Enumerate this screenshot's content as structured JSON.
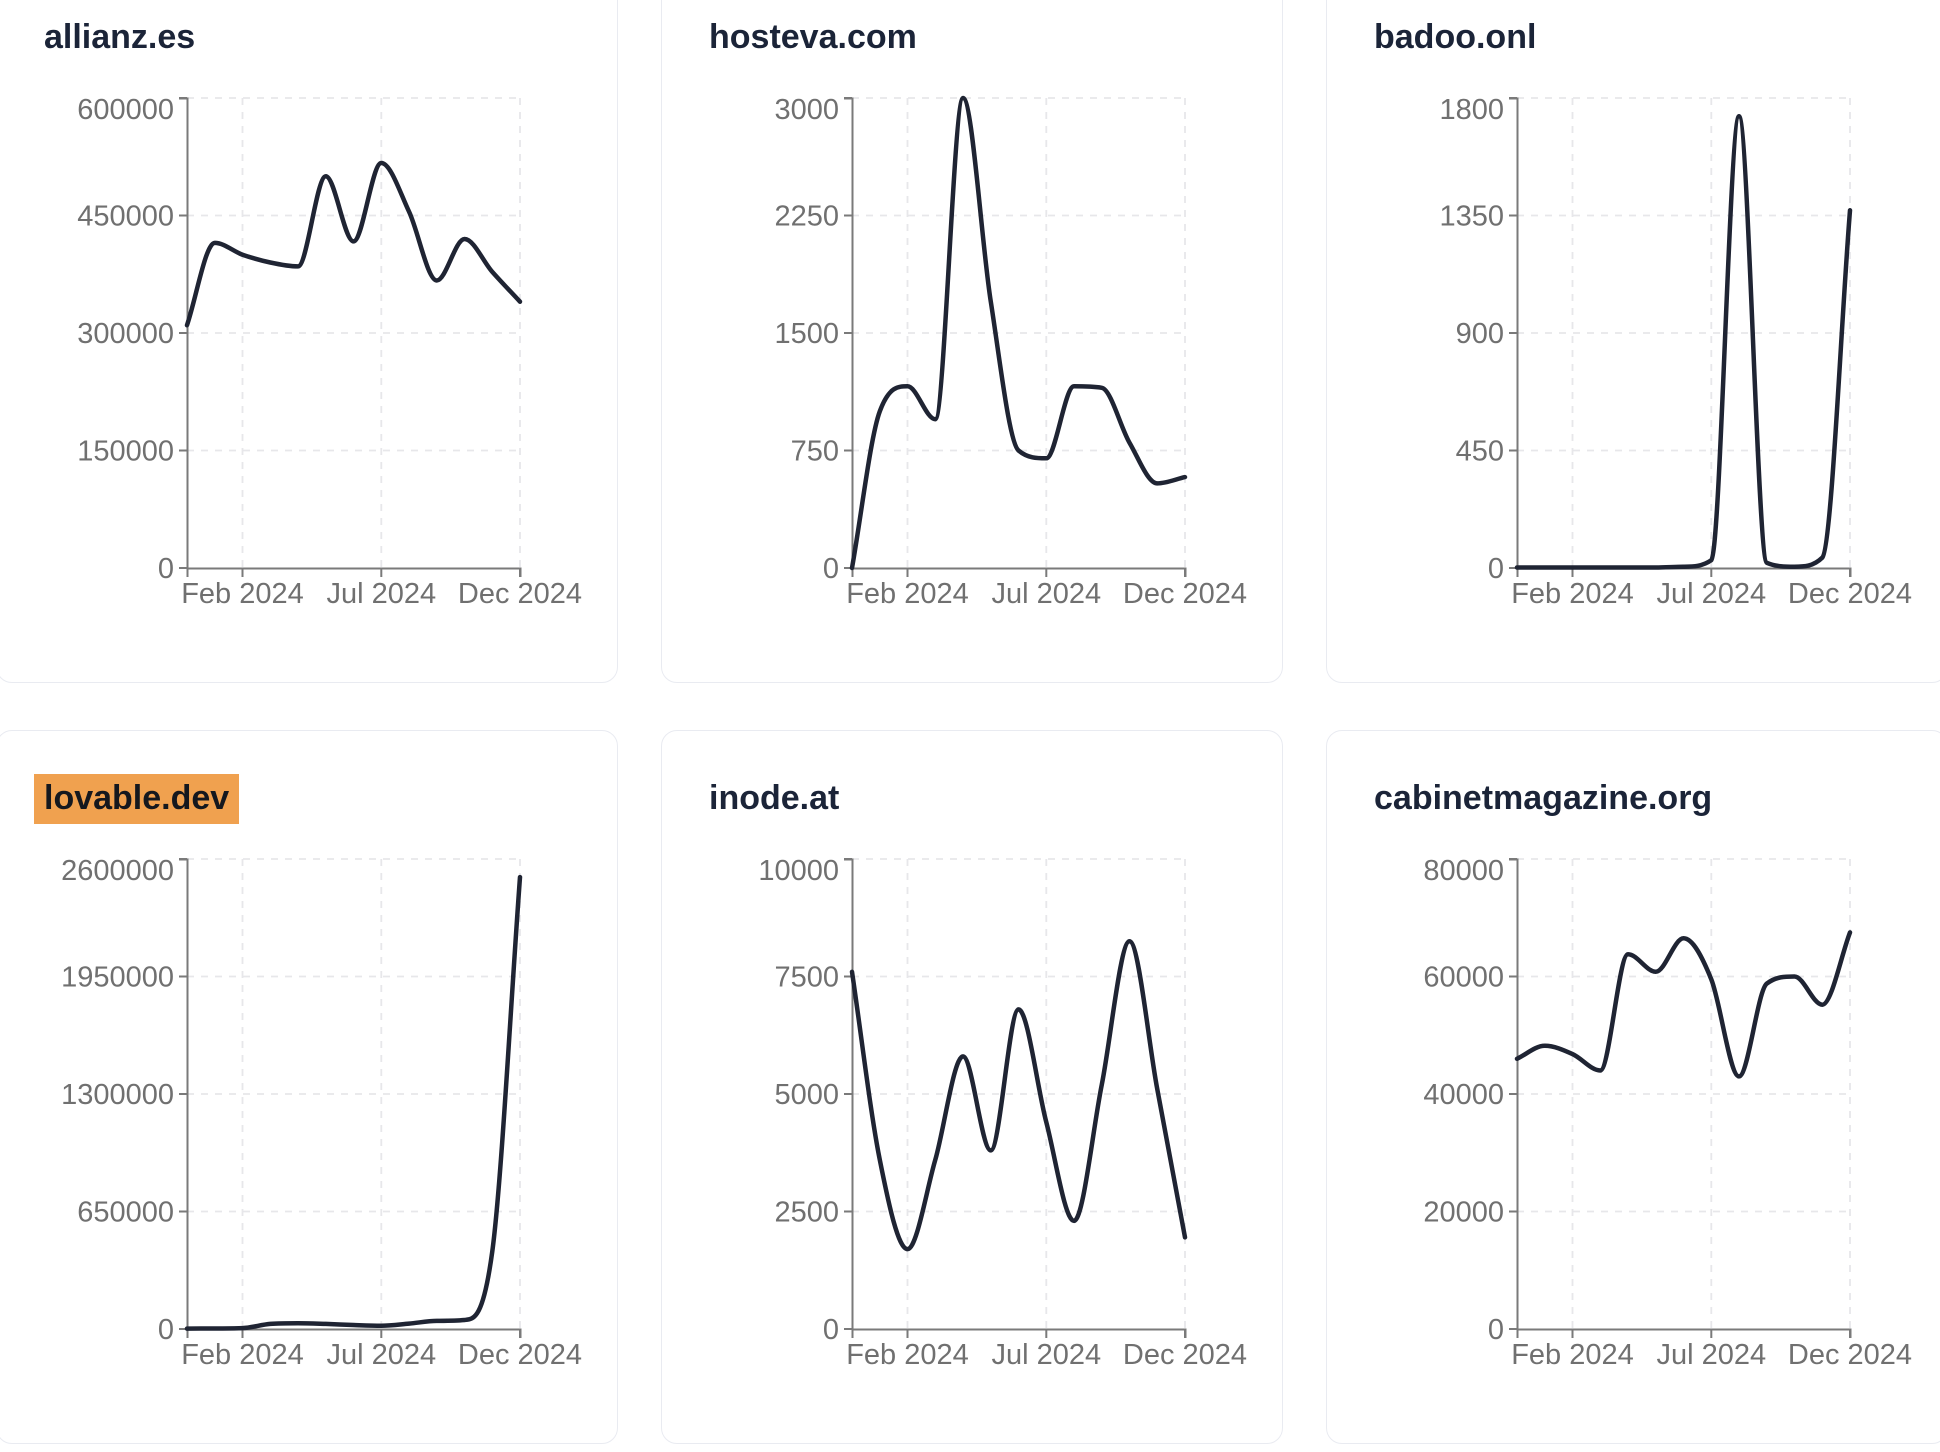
{
  "page": {
    "background": "#ffffff",
    "layout_note": "grid of 6 domain traffic chart cards, 3 columns x 2 rows"
  },
  "style": {
    "line_color": "#1f2433",
    "title_color": "#1b2438",
    "tick_text_color": "#707070",
    "axis_color": "#7a7a7a",
    "grid_color": "#e7e7ea",
    "card_border": "#e9ebf1",
    "card_bg": "#ffffff",
    "highlight_bg": "#f0a14f",
    "highlight_text": "#15181e"
  },
  "chart_data": [
    {
      "type": "line",
      "title": "allianz.es",
      "highlighted": false,
      "x": [
        "Dec 2023",
        "Jan 2024",
        "Feb 2024",
        "Mar 2024",
        "Apr 2024",
        "May 2024",
        "Jun 2024",
        "Jul 2024",
        "Aug 2024",
        "Sep 2024",
        "Oct 2024",
        "Nov 2024",
        "Dec 2024"
      ],
      "values": [
        310000,
        415000,
        400000,
        390000,
        385000,
        500000,
        417000,
        517000,
        455000,
        367000,
        420000,
        378000,
        340000
      ],
      "ylim": [
        0,
        600000
      ],
      "y_ticks": [
        0,
        150000,
        300000,
        450000,
        600000
      ],
      "x_ticks": [
        {
          "index": 2,
          "label": "Feb 2024"
        },
        {
          "index": 7,
          "label": "Jul 2024"
        },
        {
          "index": 12,
          "label": "Dec 2024"
        }
      ],
      "grid": "dashed",
      "legend": "none"
    },
    {
      "type": "line",
      "title": "hosteva.com",
      "highlighted": false,
      "x": [
        "Dec 2023",
        "Jan 2024",
        "Feb 2024",
        "Mar 2024",
        "Apr 2024",
        "May 2024",
        "Jun 2024",
        "Jul 2024",
        "Aug 2024",
        "Sep 2024",
        "Oct 2024",
        "Nov 2024",
        "Dec 2024"
      ],
      "values": [
        0,
        1000,
        1160,
        950,
        3000,
        1700,
        750,
        700,
        1160,
        1150,
        800,
        540,
        580
      ],
      "ylim": [
        0,
        3000
      ],
      "y_ticks": [
        0,
        750,
        1500,
        2250,
        3000
      ],
      "x_ticks": [
        {
          "index": 2,
          "label": "Feb 2024"
        },
        {
          "index": 7,
          "label": "Jul 2024"
        },
        {
          "index": 12,
          "label": "Dec 2024"
        }
      ],
      "grid": "dashed",
      "legend": "none"
    },
    {
      "type": "line",
      "title": "badoo.onl",
      "highlighted": false,
      "x": [
        "Dec 2023",
        "Jan 2024",
        "Feb 2024",
        "Mar 2024",
        "Apr 2024",
        "May 2024",
        "Jun 2024",
        "Jul 2024",
        "Aug 2024",
        "Sep 2024",
        "Oct 2024",
        "Nov 2024",
        "Dec 2024"
      ],
      "values": [
        2,
        2,
        2,
        2,
        2,
        2,
        5,
        30,
        1730,
        20,
        5,
        40,
        1370
      ],
      "ylim": [
        0,
        1800
      ],
      "y_ticks": [
        0,
        450,
        900,
        1350,
        1800
      ],
      "x_ticks": [
        {
          "index": 2,
          "label": "Feb 2024"
        },
        {
          "index": 7,
          "label": "Jul 2024"
        },
        {
          "index": 12,
          "label": "Dec 2024"
        }
      ],
      "grid": "dashed",
      "legend": "none"
    },
    {
      "type": "line",
      "title": "lovable.dev",
      "highlighted": true,
      "x": [
        "Dec 2023",
        "Jan 2024",
        "Feb 2024",
        "Mar 2024",
        "Apr 2024",
        "May 2024",
        "Jun 2024",
        "Jul 2024",
        "Aug 2024",
        "Sep 2024",
        "Oct 2024",
        "Nov 2024",
        "Dec 2024"
      ],
      "values": [
        2000,
        3000,
        5000,
        28000,
        32000,
        28000,
        22000,
        18000,
        30000,
        45000,
        50000,
        430000,
        2500000
      ],
      "ylim": [
        0,
        2600000
      ],
      "y_ticks": [
        0,
        650000,
        1300000,
        1950000,
        2600000
      ],
      "x_ticks": [
        {
          "index": 2,
          "label": "Feb 2024"
        },
        {
          "index": 7,
          "label": "Jul 2024"
        },
        {
          "index": 12,
          "label": "Dec 2024"
        }
      ],
      "grid": "dashed",
      "legend": "none"
    },
    {
      "type": "line",
      "title": "inode.at",
      "highlighted": false,
      "x": [
        "Dec 2023",
        "Jan 2024",
        "Feb 2024",
        "Mar 2024",
        "Apr 2024",
        "May 2024",
        "Jun 2024",
        "Jul 2024",
        "Aug 2024",
        "Sep 2024",
        "Oct 2024",
        "Nov 2024",
        "Dec 2024"
      ],
      "values": [
        7600,
        3600,
        1700,
        3600,
        5800,
        3800,
        6800,
        4400,
        2300,
        5200,
        8250,
        5100,
        1950
      ],
      "ylim": [
        0,
        10000
      ],
      "y_ticks": [
        0,
        2500,
        5000,
        7500,
        10000
      ],
      "x_ticks": [
        {
          "index": 2,
          "label": "Feb 2024"
        },
        {
          "index": 7,
          "label": "Jul 2024"
        },
        {
          "index": 12,
          "label": "Dec 2024"
        }
      ],
      "grid": "dashed",
      "legend": "none"
    },
    {
      "type": "line",
      "title": "cabinetmagazine.org",
      "highlighted": false,
      "x": [
        "Dec 2023",
        "Jan 2024",
        "Feb 2024",
        "Mar 2024",
        "Apr 2024",
        "May 2024",
        "Jun 2024",
        "Jul 2024",
        "Aug 2024",
        "Sep 2024",
        "Oct 2024",
        "Nov 2024",
        "Dec 2024"
      ],
      "values": [
        46000,
        48200,
        46800,
        44000,
        63800,
        60800,
        66500,
        59500,
        43000,
        58800,
        60000,
        55200,
        67500
      ],
      "ylim": [
        0,
        80000
      ],
      "y_ticks": [
        0,
        20000,
        40000,
        60000,
        80000
      ],
      "x_ticks": [
        {
          "index": 2,
          "label": "Feb 2024"
        },
        {
          "index": 7,
          "label": "Jul 2024"
        },
        {
          "index": 12,
          "label": "Dec 2024"
        }
      ],
      "grid": "dashed",
      "legend": "none"
    }
  ]
}
